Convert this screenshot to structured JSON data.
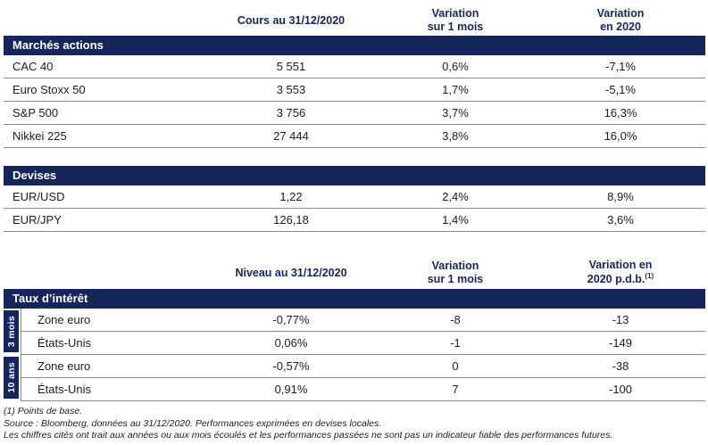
{
  "colors": {
    "navy": "#16265b",
    "border": "#8c8c8c",
    "text": "#1d1d1b"
  },
  "table1": {
    "section": "Marchés actions",
    "headers": {
      "col2": "Cours au 31/12/2020",
      "col3_line1": "Variation",
      "col3_line2": "sur 1 mois",
      "col4_line1": "Variation",
      "col4_line2": "en 2020"
    },
    "rows": [
      {
        "label": "CAC 40",
        "value": "5 551",
        "var_1m": "0,6%",
        "var_2020": "-7,1%"
      },
      {
        "label": "Euro Stoxx 50",
        "value": "3 553",
        "var_1m": "1,7%",
        "var_2020": "-5,1%"
      },
      {
        "label": "S&P 500",
        "value": "3 756",
        "var_1m": "3,7%",
        "var_2020": "16,3%"
      },
      {
        "label": "Nikkei 225",
        "value": "27 444",
        "var_1m": "3,8%",
        "var_2020": "16,0%"
      }
    ]
  },
  "table2": {
    "section": "Devises",
    "rows": [
      {
        "label": "EUR/USD",
        "value": "1,22",
        "var_1m": "2,4%",
        "var_2020": "8,9%"
      },
      {
        "label": "EUR/JPY",
        "value": "126,18",
        "var_1m": "1,4%",
        "var_2020": "3,6%"
      }
    ]
  },
  "table3": {
    "section": "Taux d’intérêt",
    "headers": {
      "col2": "Niveau au 31/12/2020",
      "col3_line1": "Variation",
      "col3_line2": "sur 1 mois",
      "col4_line1": "Variation en",
      "col4_line2": "2020 p.d.b.",
      "col4_sup": "(1)"
    },
    "groups": [
      {
        "label": "3 mois",
        "rows": [
          {
            "label": "Zone euro",
            "value": "-0,77%",
            "var_1m": "-8",
            "var_2020": "-13"
          },
          {
            "label": "États-Unis",
            "value": "0,06%",
            "var_1m": "-1",
            "var_2020": "-149"
          }
        ]
      },
      {
        "label": "10 ans",
        "rows": [
          {
            "label": "Zone euro",
            "value": "-0,57%",
            "var_1m": "0",
            "var_2020": "-38"
          },
          {
            "label": "États-Unis",
            "value": "0,91%",
            "var_1m": "7",
            "var_2020": "-100"
          }
        ]
      }
    ]
  },
  "footnotes": [
    "(1) Points de base.",
    "Source : Bloomberg, données au 31/12/2020. Performances exprimées en devises locales.",
    "Les chiffres cités ont trait aux années ou aux mois écoulés et les performances passées ne sont pas un indicateur fiable des performances futures."
  ]
}
